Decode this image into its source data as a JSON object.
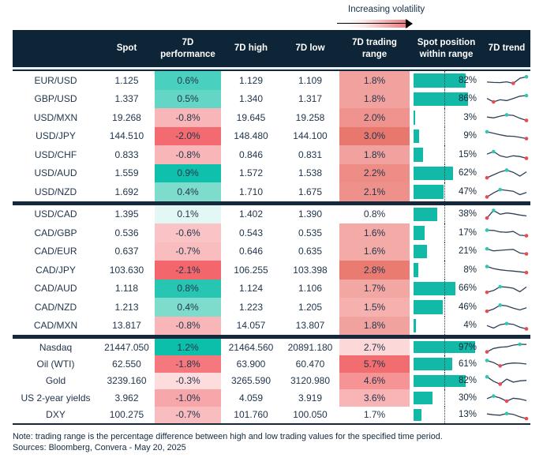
{
  "volatility_legend": {
    "label": "Increasing volatility"
  },
  "notes": {
    "note": "Note: trading range is the percentage difference between high and low trading values for the specified time period.",
    "sources": "Sources: Bloomberg, Convera - May 20, 2025"
  },
  "colors": {
    "header_bg": "#0d2537",
    "bar_teal": "#12b9a6",
    "spark_line": "#2e4057",
    "spark_max_dot": "#2fc7b2",
    "spark_min_dot": "#e84c50"
  },
  "chart_data": {
    "type": "table",
    "columns": [
      "",
      "Spot",
      "7D performance",
      "7D high",
      "7D low",
      "7D trading range",
      "Spot position within range",
      "7D trend"
    ],
    "groups": [
      {
        "rows": [
          {
            "label": "EUR/USD",
            "spot": "1.125",
            "perf": "0.6%",
            "perf_color": "#4ad0bf",
            "high": "1.129",
            "low": "1.109",
            "range": "1.8%",
            "range_color": "#f2a29e",
            "position_pct": 82,
            "position_label": "82%",
            "trend": [
              38,
              35,
              34,
              40,
              28,
              68,
              80
            ]
          },
          {
            "label": "GBP/USD",
            "spot": "1.337",
            "perf": "0.5%",
            "perf_color": "#63d6c6",
            "high": "1.340",
            "low": "1.317",
            "range": "1.8%",
            "range_color": "#f2a29e",
            "position_pct": 86,
            "position_label": "86%",
            "trend": [
              52,
              25,
              42,
              35,
              52,
              70,
              75
            ]
          },
          {
            "label": "USD/MXN",
            "spot": "19.268",
            "perf": "-0.8%",
            "perf_color": "#f8b6b8",
            "high": "19.645",
            "low": "19.258",
            "range": "2.0%",
            "range_color": "#f0938e",
            "position_pct": 3,
            "position_label": "3%",
            "trend": [
              55,
              48,
              62,
              72,
              68,
              45,
              28
            ]
          },
          {
            "label": "USD/JPY",
            "spot": "144.510",
            "perf": "-2.0%",
            "perf_color": "#f36b70",
            "high": "148.480",
            "low": "144.100",
            "range": "3.0%",
            "range_color": "#e8786d",
            "position_pct": 9,
            "position_label": "9%",
            "trend": [
              82,
              70,
              58,
              48,
              46,
              38,
              28
            ]
          },
          {
            "label": "USD/CHF",
            "spot": "0.833",
            "perf": "-0.8%",
            "perf_color": "#f8b6b8",
            "high": "0.846",
            "low": "0.831",
            "range": "1.8%",
            "range_color": "#f2a29e",
            "position_pct": 15,
            "position_label": "15%",
            "trend": [
              55,
              75,
              42,
              30,
              42,
              36,
              22
            ]
          },
          {
            "label": "USD/AUD",
            "spot": "1.559",
            "perf": "0.9%",
            "perf_color": "#0fc0ac",
            "high": "1.572",
            "low": "1.538",
            "range": "2.2%",
            "range_color": "#ee8c86",
            "position_pct": 62,
            "position_label": "62%",
            "trend": [
              12,
              35,
              58,
              72,
              55,
              25,
              58
            ]
          },
          {
            "label": "USD/NZD",
            "spot": "1.692",
            "perf": "0.4%",
            "perf_color": "#7edccd",
            "high": "1.710",
            "low": "1.675",
            "range": "2.1%",
            "range_color": "#ef918b",
            "position_pct": 47,
            "position_label": "47%",
            "trend": [
              10,
              42,
              68,
              62,
              55,
              28,
              45
            ]
          }
        ]
      },
      {
        "rows": [
          {
            "label": "USD/CAD",
            "spot": "1.395",
            "perf": "0.1%",
            "perf_color": "#e3f7f4",
            "high": "1.402",
            "low": "1.390",
            "range": "0.8%",
            "range_color": "#fffdfd",
            "position_pct": 38,
            "position_label": "38%",
            "trend": [
              18,
              78,
              48,
              58,
              52,
              42,
              35
            ]
          },
          {
            "label": "CAD/GBP",
            "spot": "0.536",
            "perf": "-0.6%",
            "perf_color": "#fac4c6",
            "high": "0.543",
            "low": "0.535",
            "range": "1.6%",
            "range_color": "#f4aba8",
            "position_pct": 17,
            "position_label": "17%",
            "trend": [
              72,
              70,
              58,
              55,
              62,
              32,
              28
            ]
          },
          {
            "label": "CAD/EUR",
            "spot": "0.637",
            "perf": "-0.7%",
            "perf_color": "#f9bdbf",
            "high": "0.646",
            "low": "0.635",
            "range": "1.6%",
            "range_color": "#f4aba8",
            "position_pct": 21,
            "position_label": "21%",
            "trend": [
              68,
              52,
              56,
              60,
              64,
              35,
              28
            ]
          },
          {
            "label": "CAD/JPY",
            "spot": "103.630",
            "perf": "-2.1%",
            "perf_color": "#f3676c",
            "high": "106.255",
            "low": "103.398",
            "range": "2.8%",
            "range_color": "#e97b71",
            "position_pct": 8,
            "position_label": "8%",
            "trend": [
              78,
              62,
              52,
              46,
              42,
              36,
              30
            ]
          },
          {
            "label": "CAD/AUD",
            "spot": "1.118",
            "perf": "0.8%",
            "perf_color": "#27c6b3",
            "high": "1.124",
            "low": "1.106",
            "range": "1.7%",
            "range_color": "#f3a7a3",
            "position_pct": 66,
            "position_label": "66%",
            "trend": [
              18,
              32,
              62,
              58,
              50,
              22,
              60
            ]
          },
          {
            "label": "CAD/NZD",
            "spot": "1.213",
            "perf": "0.4%",
            "perf_color": "#7edccd",
            "high": "1.223",
            "low": "1.205",
            "range": "1.5%",
            "range_color": "#f6b1ae",
            "position_pct": 46,
            "position_label": "46%",
            "trend": [
              18,
              35,
              66,
              60,
              42,
              28,
              45
            ]
          },
          {
            "label": "CAD/MXN",
            "spot": "13.817",
            "perf": "-0.8%",
            "perf_color": "#f8b6b8",
            "high": "14.057",
            "low": "13.807",
            "range": "1.8%",
            "range_color": "#f2a29e",
            "position_pct": 4,
            "position_label": "4%",
            "trend": [
              48,
              28,
              55,
              64,
              58,
              35,
              22
            ]
          }
        ]
      },
      {
        "rows": [
          {
            "label": "Nasdaq",
            "spot": "21447.050",
            "perf": "1.2%",
            "perf_color": "#0bbfab",
            "high": "21464.560",
            "low": "20891.180",
            "range": "2.7%",
            "range_color": "#fcd8d8",
            "position_pct": 97,
            "position_label": "97%",
            "trend": [
              15,
              42,
              52,
              55,
              68,
              75,
              74
            ]
          },
          {
            "label": "Oil (WTI)",
            "spot": "62.550",
            "perf": "-1.8%",
            "perf_color": "#f4787d",
            "high": "63.900",
            "low": "60.470",
            "range": "5.7%",
            "range_color": "#f26d6f",
            "position_pct": 61,
            "position_label": "61%",
            "trend": [
              78,
              62,
              35,
              52,
              58,
              56,
              50
            ]
          },
          {
            "label": "Gold",
            "spot": "3239.160",
            "perf": "-0.3%",
            "perf_color": "#fcdcdd",
            "high": "3265.590",
            "low": "3120.980",
            "range": "4.6%",
            "range_color": "#f69394",
            "position_pct": 82,
            "position_label": "82%",
            "trend": [
              80,
              45,
              22,
              62,
              38,
              48,
              52
            ]
          },
          {
            "label": "US 2-year yields",
            "spot": "3.962",
            "perf": "-1.0%",
            "perf_color": "#f7a6a9",
            "high": "4.059",
            "low": "3.919",
            "range": "3.6%",
            "range_color": "#f9b5b6",
            "position_pct": 30,
            "position_label": "30%",
            "trend": [
              45,
              65,
              50,
              25,
              48,
              42,
              30
            ]
          },
          {
            "label": "DXY",
            "spot": "100.275",
            "perf": "-0.7%",
            "perf_color": "#f9bdbf",
            "high": "101.760",
            "low": "100.050",
            "range": "1.7%",
            "range_color": "#ffffff",
            "position_pct": 13,
            "position_label": "13%",
            "trend": [
              55,
              48,
              45,
              58,
              52,
              32,
              18
            ]
          }
        ]
      }
    ]
  }
}
